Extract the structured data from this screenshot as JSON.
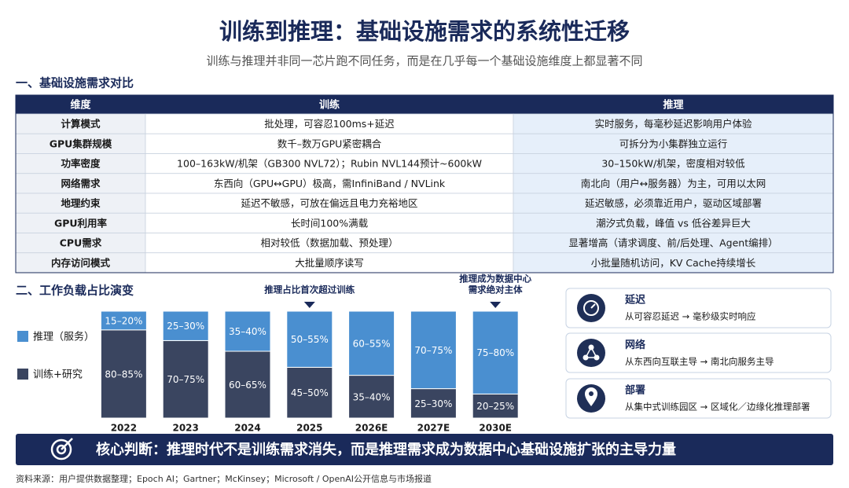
{
  "header": {
    "title": "训练到推理：基础设施需求的系统性迁移",
    "subtitle": "训练与推理并非同一芯片跑不同任务，而是在几乎每一个基础设施维度上都显著不同"
  },
  "section1": {
    "title": "一、基础设施需求对比"
  },
  "table": {
    "header": [
      "维度",
      "训练",
      "推理"
    ],
    "rows": [
      [
        "计算模式",
        "批处理，可容忍100ms+延迟",
        "实时服务，每毫秒延迟影响用户体验"
      ],
      [
        "GPU集群规模",
        "数千–数万GPU紧密耦合",
        "可拆分为小集群独立运行"
      ],
      [
        "功率密度",
        "100–163kW/机架（GB300 NVL72）；Rubin NVL144预计~600kW",
        "30–150kW/机架，密度相对较低"
      ],
      [
        "网络需求",
        "东西向（GPU↔GPU）极高，需InfiniBand / NVLink",
        "南北向（用户↔服务器）为主，可用以太网"
      ],
      [
        "地理约束",
        "延迟不敏感，可放在偏远且电力充裕地区",
        "延迟敏感，必须靠近用户，驱动区域部署"
      ],
      [
        "GPU利用率",
        "长时间100%满载",
        "潮汐式负载，峰值 vs 低谷差异巨大"
      ],
      [
        "CPU需求",
        "相对较低（数据加载、预处理）",
        "显著增高（请求调度、前/后处理、Agent编排）"
      ],
      [
        "内存访问模式",
        "大批量顺序读写",
        "小批量随机访问，KV Cache持续增长"
      ]
    ]
  },
  "section2": {
    "title": "二、工作负载占比演变"
  },
  "chart_data": {
    "type": "bar",
    "stacked": true,
    "categories": [
      "2022",
      "2023",
      "2024",
      "2025",
      "2026E",
      "2027E",
      "2030E"
    ],
    "series": [
      {
        "name": "推理（服务）",
        "color": "#4a8fd0",
        "values": [
          17.5,
          27.5,
          37.5,
          52.5,
          60,
          72.5,
          77.5
        ],
        "value_labels": [
          "15–20%",
          "25–30%",
          "35–40%",
          "50–55%",
          "60–55%",
          "70–75%",
          "75–80%"
        ]
      },
      {
        "name": "训练+研究",
        "color": "#3a4560",
        "values": [
          82.5,
          72.5,
          62.5,
          47.5,
          40,
          27.5,
          22.5
        ],
        "value_labels": [
          "80–85%",
          "70–75%",
          "60–65%",
          "45–50%",
          "35–40%",
          "25–30%",
          "20–25%"
        ]
      }
    ],
    "ylim": [
      0,
      100
    ],
    "annotations": [
      {
        "category": "2025",
        "lines": [
          "推理占比首次超过训练"
        ]
      },
      {
        "category": "2030E",
        "lines": [
          "推理成为数据中心",
          "需求绝对主体"
        ]
      }
    ]
  },
  "cards": [
    {
      "title": "延迟",
      "text": "从可容忍延迟 → 毫秒级实时响应"
    },
    {
      "title": "网络",
      "text": "从东西向互联主导 → 南北向服务主导"
    },
    {
      "title": "部署",
      "text": "从集中式训练园区 → 区域化／边缘化推理部署"
    }
  ],
  "conclusion": "核心判断：推理时代不是训练需求消失，而是推理需求成为数据中心基础设施扩张的主导力量",
  "source": "资料来源：用户提供数据整理；Epoch AI；Gartner；McKinsey；Microsoft / OpenAI公开信息与市场报道"
}
